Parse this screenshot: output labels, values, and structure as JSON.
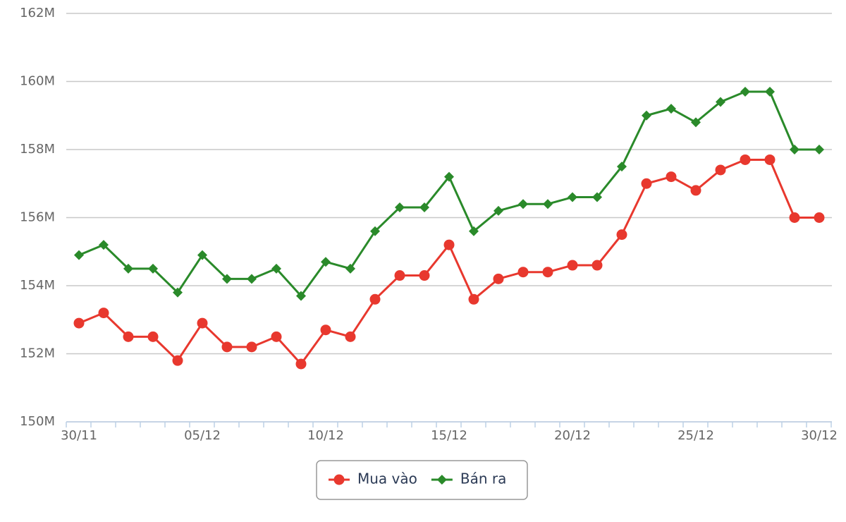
{
  "chart_data": {
    "type": "line",
    "categories": [
      "30/11",
      null,
      null,
      null,
      null,
      "05/12",
      null,
      null,
      null,
      null,
      "10/12",
      null,
      null,
      null,
      null,
      "15/12",
      null,
      null,
      null,
      null,
      "20/12",
      null,
      null,
      null,
      null,
      "25/12",
      null,
      null,
      null,
      null,
      "30/12"
    ],
    "series": [
      {
        "name": "Mua vào",
        "color": "#e8382e",
        "marker": "circle",
        "values": [
          152.9,
          153.2,
          152.5,
          152.5,
          151.8,
          152.9,
          152.2,
          152.2,
          152.5,
          151.7,
          152.7,
          152.5,
          153.6,
          154.3,
          154.3,
          155.2,
          153.6,
          154.2,
          154.4,
          154.4,
          154.6,
          154.6,
          155.5,
          157.0,
          157.2,
          156.8,
          157.4,
          157.7,
          157.7,
          156.0,
          156.0
        ]
      },
      {
        "name": "Bán ra",
        "color": "#2a8a2a",
        "marker": "diamond",
        "values": [
          154.9,
          155.2,
          154.5,
          154.5,
          153.8,
          154.9,
          154.2,
          154.2,
          154.5,
          153.7,
          154.7,
          154.5,
          155.6,
          156.3,
          156.3,
          157.2,
          155.6,
          156.2,
          156.4,
          156.4,
          156.6,
          156.6,
          157.5,
          159.0,
          159.2,
          158.8,
          159.4,
          159.7,
          159.7,
          158.0,
          158.0
        ]
      }
    ],
    "ylim": [
      150,
      162
    ],
    "yticks": [
      {
        "value": 150,
        "label": "150M"
      },
      {
        "value": 152,
        "label": "152M"
      },
      {
        "value": 154,
        "label": "154M"
      },
      {
        "value": 156,
        "label": "156M"
      },
      {
        "value": 158,
        "label": "158M"
      },
      {
        "value": 160,
        "label": "160M"
      },
      {
        "value": 162,
        "label": "162M"
      }
    ],
    "grid": true,
    "legend": "bottom"
  }
}
